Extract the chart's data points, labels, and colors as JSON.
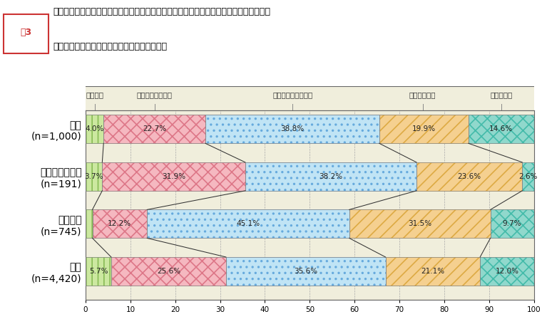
{
  "title_box_text": "図3",
  "title_line1": "現在、倫理法・倫理規程があるため、職務に必要な行政と民間企業等との間の情報収集、",
  "title_line2": "意見交換等に支障が生じていると思いますか。",
  "categories": [
    "市民\n(n=1,000)",
    "有識者モニター\n(n=191)",
    "民間企業\n(n=745)",
    "職員\n(n=4,420)"
  ],
  "column_labels": [
    "そう思う",
    "ある程度そう思う",
    "あまりそう思わない",
    "そう思わない",
    "分からない"
  ],
  "data": [
    [
      4.0,
      22.7,
      38.8,
      19.9,
      14.6
    ],
    [
      3.7,
      31.9,
      38.2,
      23.6,
      2.6
    ],
    [
      1.5,
      12.2,
      45.1,
      31.5,
      9.7
    ],
    [
      5.7,
      25.6,
      35.6,
      21.1,
      12.0
    ]
  ],
  "face_colors": [
    "#cce8a0",
    "#f5b8c0",
    "#c0e4f5",
    "#f5d090",
    "#90d8cc"
  ],
  "hatch_patterns": [
    "||",
    "xx",
    "..",
    "//",
    "xx"
  ],
  "hatch_ec": [
    "#88bb55",
    "#dd7788",
    "#66aadd",
    "#ddaa44",
    "#44bbaa"
  ],
  "bar_bg": "#f0eedc",
  "header_bg": "#f0eedc",
  "outer_bg": "#f0eedc",
  "grid_line_color": "#999999",
  "connector_color": "#333333",
  "xticks": [
    0,
    10,
    20,
    30,
    40,
    50,
    60,
    70,
    80,
    90,
    100
  ],
  "label_x_positions": [
    2.0,
    15.35,
    46.15,
    75.2,
    92.7
  ],
  "fig_width": 7.6,
  "fig_height": 4.55
}
